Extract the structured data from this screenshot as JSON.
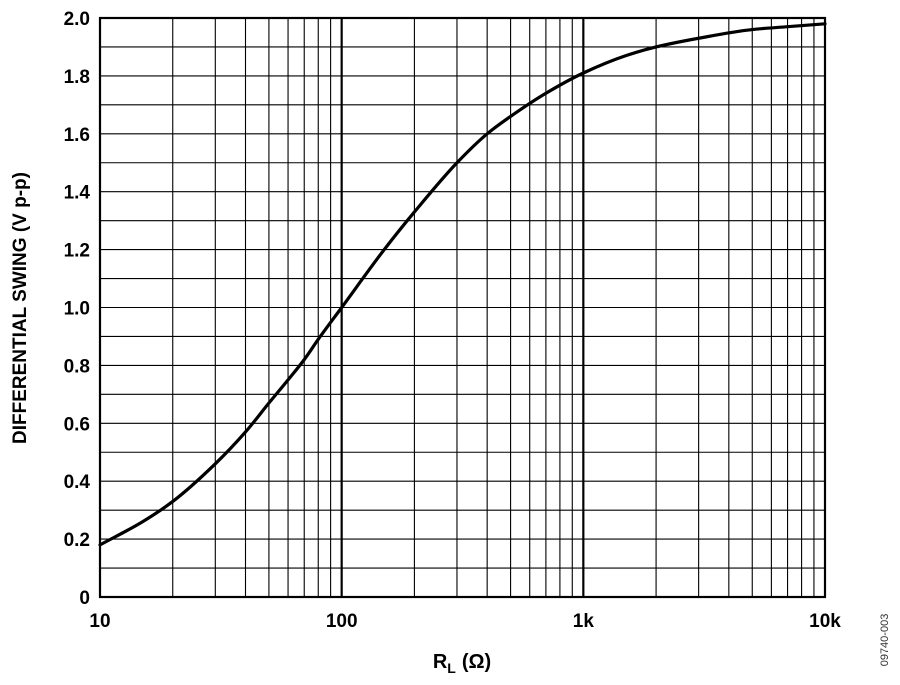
{
  "chart_data": {
    "type": "line",
    "title": "",
    "xlabel": "R",
    "xlabel_subscript": "L",
    "xlabel_unit": "(Ω)",
    "ylabel": "DIFFERENTIAL SWING (V p-p)",
    "x_scale": "log",
    "xlim": [
      10,
      10000
    ],
    "ylim": [
      0,
      2.0
    ],
    "grid": true,
    "x_ticks": [
      {
        "value": 10,
        "label": "10"
      },
      {
        "value": 100,
        "label": "100"
      },
      {
        "value": 1000,
        "label": "1k"
      },
      {
        "value": 10000,
        "label": "10k"
      }
    ],
    "y_ticks": [
      {
        "value": 0,
        "label": "0"
      },
      {
        "value": 0.2,
        "label": "0.2"
      },
      {
        "value": 0.4,
        "label": "0.4"
      },
      {
        "value": 0.6,
        "label": "0.6"
      },
      {
        "value": 0.8,
        "label": "0.8"
      },
      {
        "value": 1.0,
        "label": "1.0"
      },
      {
        "value": 1.2,
        "label": "1.2"
      },
      {
        "value": 1.4,
        "label": "1.4"
      },
      {
        "value": 1.6,
        "label": "1.6"
      },
      {
        "value": 1.8,
        "label": "1.8"
      },
      {
        "value": 2.0,
        "label": "2.0"
      }
    ],
    "series": [
      {
        "color": "#000000",
        "x": [
          10,
          15,
          20,
          30,
          40,
          50,
          60,
          70,
          80,
          100,
          150,
          200,
          300,
          400,
          500,
          700,
          1000,
          1500,
          2000,
          3000,
          5000,
          7000,
          10000
        ],
        "y": [
          0.18,
          0.26,
          0.33,
          0.46,
          0.57,
          0.67,
          0.75,
          0.82,
          0.89,
          1.0,
          1.2,
          1.33,
          1.5,
          1.6,
          1.66,
          1.74,
          1.81,
          1.87,
          1.9,
          1.93,
          1.96,
          1.97,
          1.98
        ]
      }
    ]
  },
  "figure_id": "09740-003"
}
